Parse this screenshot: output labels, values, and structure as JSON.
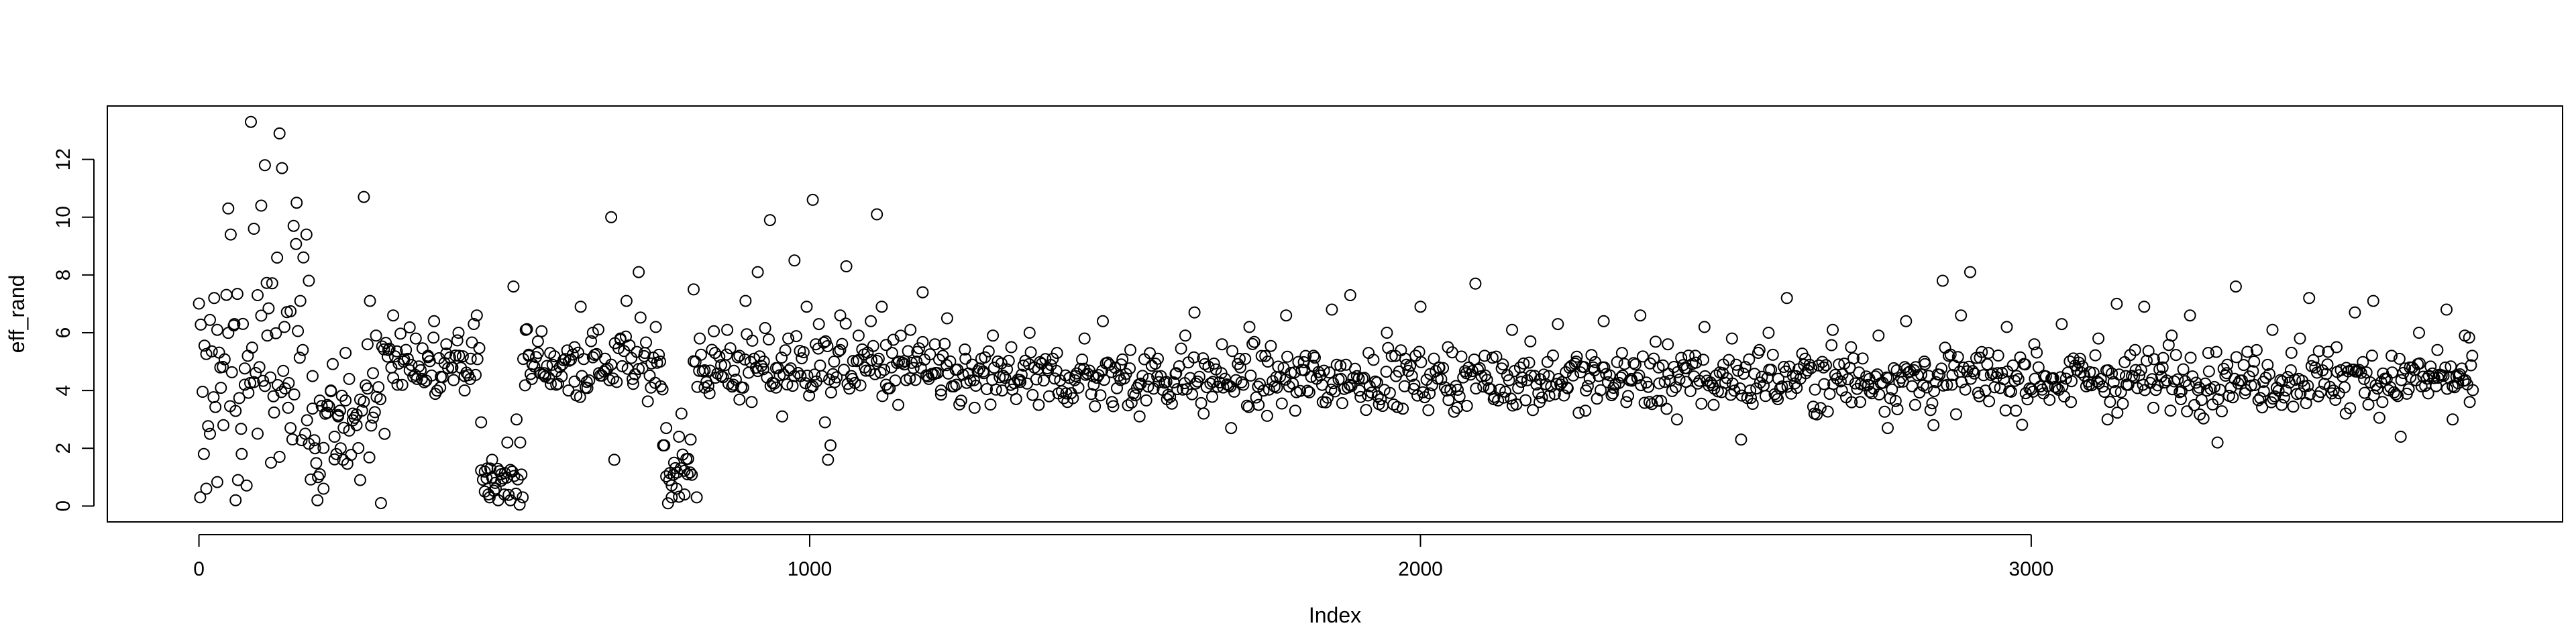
{
  "chart_data": {
    "type": "scatter",
    "title": "",
    "xlabel": "Index",
    "ylabel": "eff_rand",
    "xlim": [
      -150,
      3870
    ],
    "ylim": [
      -0.55,
      13.85
    ],
    "xticks": [
      0,
      1000,
      2000,
      3000
    ],
    "yticks": [
      0,
      2,
      4,
      6,
      8,
      10,
      12
    ],
    "xtick_labels": [
      "0",
      "1000",
      "2000",
      "3000"
    ],
    "ytick_labels": [
      "0",
      "2",
      "4",
      "6",
      "8",
      "10",
      "12"
    ],
    "grid": false,
    "marker": "open-circle",
    "n_points": 3725,
    "sampled_points": [
      [
        2,
        0.3
      ],
      [
        8,
        1.8
      ],
      [
        12,
        0.6
      ],
      [
        18,
        2.5
      ],
      [
        25,
        7.2
      ],
      [
        30,
        6.1
      ],
      [
        35,
        4.8
      ],
      [
        40,
        2.8
      ],
      [
        48,
        10.3
      ],
      [
        52,
        9.4
      ],
      [
        58,
        6.3
      ],
      [
        60,
        0.2
      ],
      [
        64,
        0.9
      ],
      [
        70,
        1.8
      ],
      [
        75,
        4.2
      ],
      [
        80,
        5.2
      ],
      [
        85,
        13.3
      ],
      [
        90,
        9.6
      ],
      [
        96,
        7.3
      ],
      [
        102,
        10.4
      ],
      [
        108,
        11.8
      ],
      [
        112,
        5.9
      ],
      [
        118,
        1.5
      ],
      [
        122,
        3.8
      ],
      [
        128,
        8.6
      ],
      [
        132,
        12.9
      ],
      [
        136,
        11.7
      ],
      [
        140,
        6.2
      ],
      [
        146,
        3.4
      ],
      [
        150,
        2.7
      ],
      [
        155,
        9.7
      ],
      [
        160,
        10.5
      ],
      [
        166,
        7.1
      ],
      [
        170,
        5.4
      ],
      [
        176,
        9.4
      ],
      [
        180,
        7.8
      ],
      [
        186,
        4.5
      ],
      [
        190,
        2.0
      ],
      [
        194,
        0.2
      ],
      [
        198,
        1.1
      ],
      [
        204,
        0.6
      ],
      [
        210,
        3.5
      ],
      [
        216,
        4.0
      ],
      [
        222,
        2.4
      ],
      [
        228,
        3.1
      ],
      [
        232,
        2.0
      ],
      [
        236,
        1.6
      ],
      [
        240,
        5.3
      ],
      [
        246,
        4.4
      ],
      [
        252,
        3.2
      ],
      [
        258,
        2.8
      ],
      [
        264,
        0.9
      ],
      [
        270,
        10.7
      ],
      [
        276,
        5.6
      ],
      [
        280,
        7.1
      ],
      [
        285,
        4.6
      ],
      [
        290,
        5.9
      ],
      [
        298,
        0.1
      ],
      [
        304,
        2.5
      ],
      [
        310,
        5.4
      ],
      [
        318,
        6.6
      ],
      [
        325,
        4.2
      ],
      [
        335,
        5.0
      ],
      [
        345,
        4.7
      ],
      [
        355,
        5.8
      ],
      [
        365,
        4.4
      ],
      [
        375,
        5.2
      ],
      [
        385,
        6.4
      ],
      [
        395,
        4.1
      ],
      [
        405,
        5.6
      ],
      [
        415,
        4.8
      ],
      [
        425,
        6.0
      ],
      [
        435,
        4.5
      ],
      [
        445,
        5.1
      ],
      [
        455,
        6.6
      ],
      [
        462,
        2.9
      ],
      [
        468,
        0.5
      ],
      [
        472,
        1.3
      ],
      [
        476,
        0.3
      ],
      [
        480,
        1.6
      ],
      [
        485,
        0.8
      ],
      [
        490,
        0.2
      ],
      [
        495,
        1.1
      ],
      [
        500,
        0.4
      ],
      [
        505,
        2.2
      ],
      [
        510,
        0.2
      ],
      [
        515,
        7.6
      ],
      [
        520,
        3.0
      ],
      [
        526,
        2.2
      ],
      [
        530,
        0.3
      ],
      [
        535,
        6.1
      ],
      [
        540,
        5.2
      ],
      [
        545,
        4.4
      ],
      [
        555,
        5.7
      ],
      [
        565,
        4.6
      ],
      [
        575,
        5.3
      ],
      [
        585,
        4.2
      ],
      [
        595,
        4.9
      ],
      [
        605,
        4.0
      ],
      [
        615,
        5.5
      ],
      [
        625,
        6.9
      ],
      [
        635,
        4.3
      ],
      [
        645,
        6.0
      ],
      [
        655,
        4.6
      ],
      [
        665,
        5.1
      ],
      [
        675,
        10.0
      ],
      [
        680,
        1.6
      ],
      [
        690,
        5.8
      ],
      [
        700,
        7.1
      ],
      [
        710,
        4.4
      ],
      [
        720,
        8.1
      ],
      [
        730,
        5.3
      ],
      [
        740,
        4.1
      ],
      [
        748,
        6.2
      ],
      [
        755,
        5.0
      ],
      [
        760,
        2.1
      ],
      [
        765,
        2.7
      ],
      [
        770,
        0.9
      ],
      [
        774,
        0.3
      ],
      [
        778,
        1.5
      ],
      [
        782,
        0.6
      ],
      [
        786,
        2.4
      ],
      [
        790,
        3.2
      ],
      [
        795,
        0.4
      ],
      [
        800,
        1.1
      ],
      [
        805,
        2.3
      ],
      [
        810,
        7.5
      ],
      [
        815,
        0.3
      ],
      [
        820,
        5.8
      ],
      [
        828,
        4.7
      ],
      [
        836,
        3.9
      ],
      [
        845,
        5.3
      ],
      [
        855,
        4.5
      ],
      [
        865,
        6.1
      ],
      [
        875,
        4.2
      ],
      [
        885,
        5.2
      ],
      [
        895,
        7.1
      ],
      [
        905,
        3.6
      ],
      [
        915,
        8.1
      ],
      [
        925,
        5.0
      ],
      [
        935,
        9.9
      ],
      [
        945,
        4.1
      ],
      [
        955,
        3.1
      ],
      [
        965,
        5.8
      ],
      [
        975,
        8.5
      ],
      [
        985,
        4.5
      ],
      [
        995,
        6.9
      ],
      [
        1005,
        10.6
      ],
      [
        1010,
        5.6
      ],
      [
        1015,
        6.3
      ],
      [
        1025,
        2.9
      ],
      [
        1030,
        1.6
      ],
      [
        1034,
        2.1
      ],
      [
        1040,
        5.0
      ],
      [
        1050,
        6.6
      ],
      [
        1060,
        8.3
      ],
      [
        1070,
        4.4
      ],
      [
        1080,
        5.9
      ],
      [
        1090,
        4.8
      ],
      [
        1100,
        6.4
      ],
      [
        1110,
        10.1
      ],
      [
        1118,
        6.9
      ],
      [
        1125,
        4.2
      ],
      [
        1135,
        5.3
      ],
      [
        1145,
        3.5
      ],
      [
        1155,
        4.9
      ],
      [
        1165,
        6.1
      ],
      [
        1175,
        5.0
      ],
      [
        1185,
        7.4
      ],
      [
        1195,
        4.4
      ],
      [
        1205,
        5.6
      ],
      [
        1215,
        4.0
      ],
      [
        1225,
        6.5
      ],
      [
        1240,
        4.2
      ],
      [
        1255,
        5.1
      ],
      [
        1270,
        3.4
      ],
      [
        1285,
        4.6
      ],
      [
        1300,
        5.9
      ],
      [
        1315,
        4.0
      ],
      [
        1330,
        5.5
      ],
      [
        1345,
        4.3
      ],
      [
        1360,
        6.0
      ],
      [
        1375,
        3.5
      ],
      [
        1390,
        4.7
      ],
      [
        1405,
        5.3
      ],
      [
        1420,
        3.9
      ],
      [
        1435,
        4.5
      ],
      [
        1450,
        5.8
      ],
      [
        1465,
        4.2
      ],
      [
        1480,
        6.4
      ],
      [
        1495,
        3.6
      ],
      [
        1510,
        4.9
      ],
      [
        1525,
        5.4
      ],
      [
        1540,
        3.1
      ],
      [
        1555,
        4.4
      ],
      [
        1570,
        5.1
      ],
      [
        1585,
        3.7
      ],
      [
        1600,
        4.6
      ],
      [
        1615,
        5.9
      ],
      [
        1630,
        6.7
      ],
      [
        1645,
        3.2
      ],
      [
        1660,
        4.3
      ],
      [
        1675,
        5.6
      ],
      [
        1690,
        2.7
      ],
      [
        1705,
        4.8
      ],
      [
        1720,
        6.2
      ],
      [
        1735,
        3.5
      ],
      [
        1750,
        5.0
      ],
      [
        1765,
        4.1
      ],
      [
        1780,
        6.6
      ],
      [
        1795,
        3.3
      ],
      [
        1810,
        4.7
      ],
      [
        1825,
        5.2
      ],
      [
        1840,
        3.6
      ],
      [
        1855,
        6.8
      ],
      [
        1870,
        4.4
      ],
      [
        1885,
        7.3
      ],
      [
        1900,
        4.0
      ],
      [
        1915,
        5.3
      ],
      [
        1930,
        3.8
      ],
      [
        1945,
        6.0
      ],
      [
        1960,
        4.5
      ],
      [
        1975,
        5.1
      ],
      [
        1990,
        4.2
      ],
      [
        2000,
        6.9
      ],
      [
        2015,
        3.9
      ],
      [
        2030,
        4.8
      ],
      [
        2045,
        5.5
      ],
      [
        2060,
        3.4
      ],
      [
        2075,
        4.6
      ],
      [
        2090,
        7.7
      ],
      [
        2105,
        5.2
      ],
      [
        2120,
        3.7
      ],
      [
        2135,
        4.9
      ],
      [
        2150,
        6.1
      ],
      [
        2165,
        4.3
      ],
      [
        2180,
        5.7
      ],
      [
        2195,
        3.6
      ],
      [
        2210,
        4.5
      ],
      [
        2225,
        6.3
      ],
      [
        2240,
        4.1
      ],
      [
        2255,
        5.0
      ],
      [
        2270,
        3.3
      ],
      [
        2285,
        4.7
      ],
      [
        2300,
        6.4
      ],
      [
        2315,
        3.9
      ],
      [
        2330,
        5.3
      ],
      [
        2345,
        4.4
      ],
      [
        2360,
        6.6
      ],
      [
        2375,
        3.6
      ],
      [
        2390,
        4.8
      ],
      [
        2405,
        5.6
      ],
      [
        2420,
        3.0
      ],
      [
        2435,
        4.3
      ],
      [
        2450,
        5.2
      ],
      [
        2465,
        6.2
      ],
      [
        2480,
        3.5
      ],
      [
        2495,
        4.6
      ],
      [
        2510,
        5.8
      ],
      [
        2525,
        2.3
      ],
      [
        2540,
        4.0
      ],
      [
        2555,
        5.4
      ],
      [
        2570,
        6.0
      ],
      [
        2585,
        3.7
      ],
      [
        2600,
        7.2
      ],
      [
        2615,
        4.5
      ],
      [
        2630,
        5.1
      ],
      [
        2645,
        3.2
      ],
      [
        2660,
        4.8
      ],
      [
        2675,
        6.1
      ],
      [
        2690,
        4.0
      ],
      [
        2705,
        5.5
      ],
      [
        2720,
        3.6
      ],
      [
        2735,
        4.4
      ],
      [
        2750,
        5.9
      ],
      [
        2765,
        2.7
      ],
      [
        2780,
        4.7
      ],
      [
        2795,
        6.4
      ],
      [
        2810,
        3.5
      ],
      [
        2825,
        5.0
      ],
      [
        2840,
        2.8
      ],
      [
        2855,
        7.8
      ],
      [
        2870,
        4.2
      ],
      [
        2885,
        6.6
      ],
      [
        2900,
        8.1
      ],
      [
        2915,
        3.8
      ],
      [
        2930,
        5.3
      ],
      [
        2945,
        4.6
      ],
      [
        2960,
        6.2
      ],
      [
        2975,
        3.3
      ],
      [
        2990,
        4.9
      ],
      [
        3005,
        5.6
      ],
      [
        3020,
        3.9
      ],
      [
        3035,
        4.4
      ],
      [
        3050,
        6.3
      ],
      [
        3065,
        3.6
      ],
      [
        3080,
        5.1
      ],
      [
        3095,
        4.2
      ],
      [
        3110,
        5.8
      ],
      [
        3125,
        3.0
      ],
      [
        3140,
        7.0
      ],
      [
        3155,
        4.5
      ],
      [
        3170,
        5.4
      ],
      [
        3185,
        6.9
      ],
      [
        3200,
        3.4
      ],
      [
        3215,
        4.8
      ],
      [
        3230,
        5.9
      ],
      [
        3245,
        3.7
      ],
      [
        3260,
        6.6
      ],
      [
        3275,
        4.1
      ],
      [
        3290,
        5.3
      ],
      [
        3305,
        2.2
      ],
      [
        3320,
        4.6
      ],
      [
        3335,
        7.6
      ],
      [
        3350,
        3.9
      ],
      [
        3365,
        5.0
      ],
      [
        3380,
        4.3
      ],
      [
        3395,
        6.1
      ],
      [
        3410,
        3.5
      ],
      [
        3425,
        4.7
      ],
      [
        3440,
        5.8
      ],
      [
        3455,
        7.2
      ],
      [
        3470,
        3.8
      ],
      [
        3485,
        4.9
      ],
      [
        3500,
        5.5
      ],
      [
        3515,
        3.2
      ],
      [
        3530,
        6.7
      ],
      [
        3545,
        4.4
      ],
      [
        3560,
        7.1
      ],
      [
        3575,
        3.6
      ],
      [
        3590,
        5.2
      ],
      [
        3605,
        2.4
      ],
      [
        3620,
        4.8
      ],
      [
        3635,
        6.0
      ],
      [
        3650,
        3.9
      ],
      [
        3665,
        5.4
      ],
      [
        3680,
        6.8
      ],
      [
        3690,
        3.0
      ],
      [
        3700,
        4.5
      ],
      [
        3710,
        5.9
      ],
      [
        3718,
        3.6
      ],
      [
        3722,
        5.2
      ]
    ]
  }
}
